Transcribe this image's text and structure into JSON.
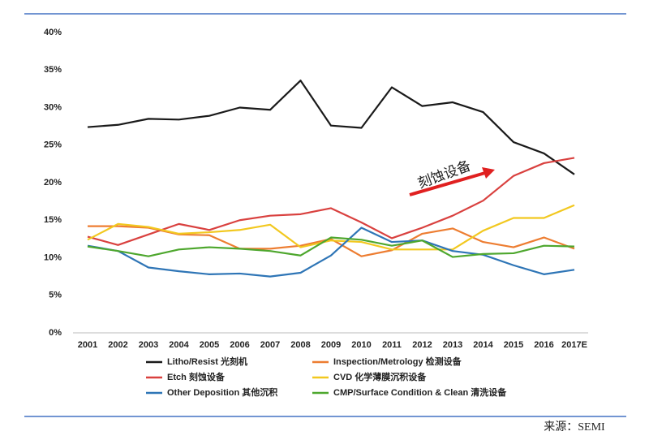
{
  "chart_data": {
    "type": "line",
    "categories": [
      "2001",
      "2002",
      "2003",
      "2004",
      "2005",
      "2006",
      "2007",
      "2008",
      "2009",
      "2010",
      "2011",
      "2012",
      "2013",
      "2014",
      "2015",
      "2016",
      "2017E"
    ],
    "series": [
      {
        "name": "Litho/Resist 光刻机",
        "color": "#1a1a1a",
        "values": [
          27.4,
          27.7,
          28.5,
          28.4,
          28.9,
          30.0,
          29.7,
          33.6,
          27.6,
          27.3,
          32.7,
          30.2,
          30.7,
          29.4,
          25.4,
          23.9,
          21.1
        ]
      },
      {
        "name": "Inspection/Metrology 检测设备",
        "color": "#ed7d31",
        "values": [
          14.2,
          14.2,
          14.0,
          13.1,
          13.0,
          11.2,
          11.2,
          11.6,
          12.5,
          10.2,
          11.0,
          13.2,
          13.9,
          12.1,
          11.4,
          12.7,
          11.2
        ]
      },
      {
        "name": "Etch 刻蚀设备",
        "color": "#d9413f",
        "values": [
          12.8,
          11.7,
          13.1,
          14.5,
          13.7,
          15.0,
          15.6,
          15.8,
          16.6,
          14.7,
          12.6,
          14.0,
          15.6,
          17.6,
          20.9,
          22.6,
          23.3
        ]
      },
      {
        "name": "CVD 化学薄膜沉积设备",
        "color": "#f2c81f",
        "values": [
          12.4,
          14.5,
          14.1,
          13.2,
          13.4,
          13.7,
          14.4,
          11.4,
          12.3,
          12.1,
          11.1,
          11.1,
          11.1,
          13.6,
          15.3,
          15.3,
          17.0
        ]
      },
      {
        "name": "Other Deposition 其他沉积",
        "color": "#2e75b6",
        "values": [
          11.6,
          10.9,
          8.7,
          8.2,
          7.8,
          7.9,
          7.5,
          8.0,
          10.3,
          14.0,
          12.1,
          12.3,
          10.9,
          10.4,
          9.0,
          7.8,
          8.4
        ]
      },
      {
        "name": "CMP/Surface Condition & Clean 清洗设备",
        "color": "#4ea72e",
        "values": [
          11.5,
          10.9,
          10.2,
          11.1,
          11.4,
          11.2,
          10.9,
          10.3,
          12.7,
          12.4,
          11.6,
          12.3,
          10.1,
          10.5,
          10.6,
          11.6,
          11.5
        ]
      }
    ],
    "ylim": [
      0,
      40
    ],
    "yticks": [
      {
        "value": 0,
        "label": "0%"
      },
      {
        "value": 5,
        "label": "5%"
      },
      {
        "value": 10,
        "label": "10%"
      },
      {
        "value": 15,
        "label": "15%"
      },
      {
        "value": 20,
        "label": "20%"
      },
      {
        "value": 25,
        "label": "25%"
      },
      {
        "value": 30,
        "label": "30%"
      },
      {
        "value": 35,
        "label": "35%"
      },
      {
        "value": 40,
        "label": "40%"
      }
    ],
    "grid": false,
    "annotation": "刻蚀设备",
    "source": "来源：SEMI"
  }
}
